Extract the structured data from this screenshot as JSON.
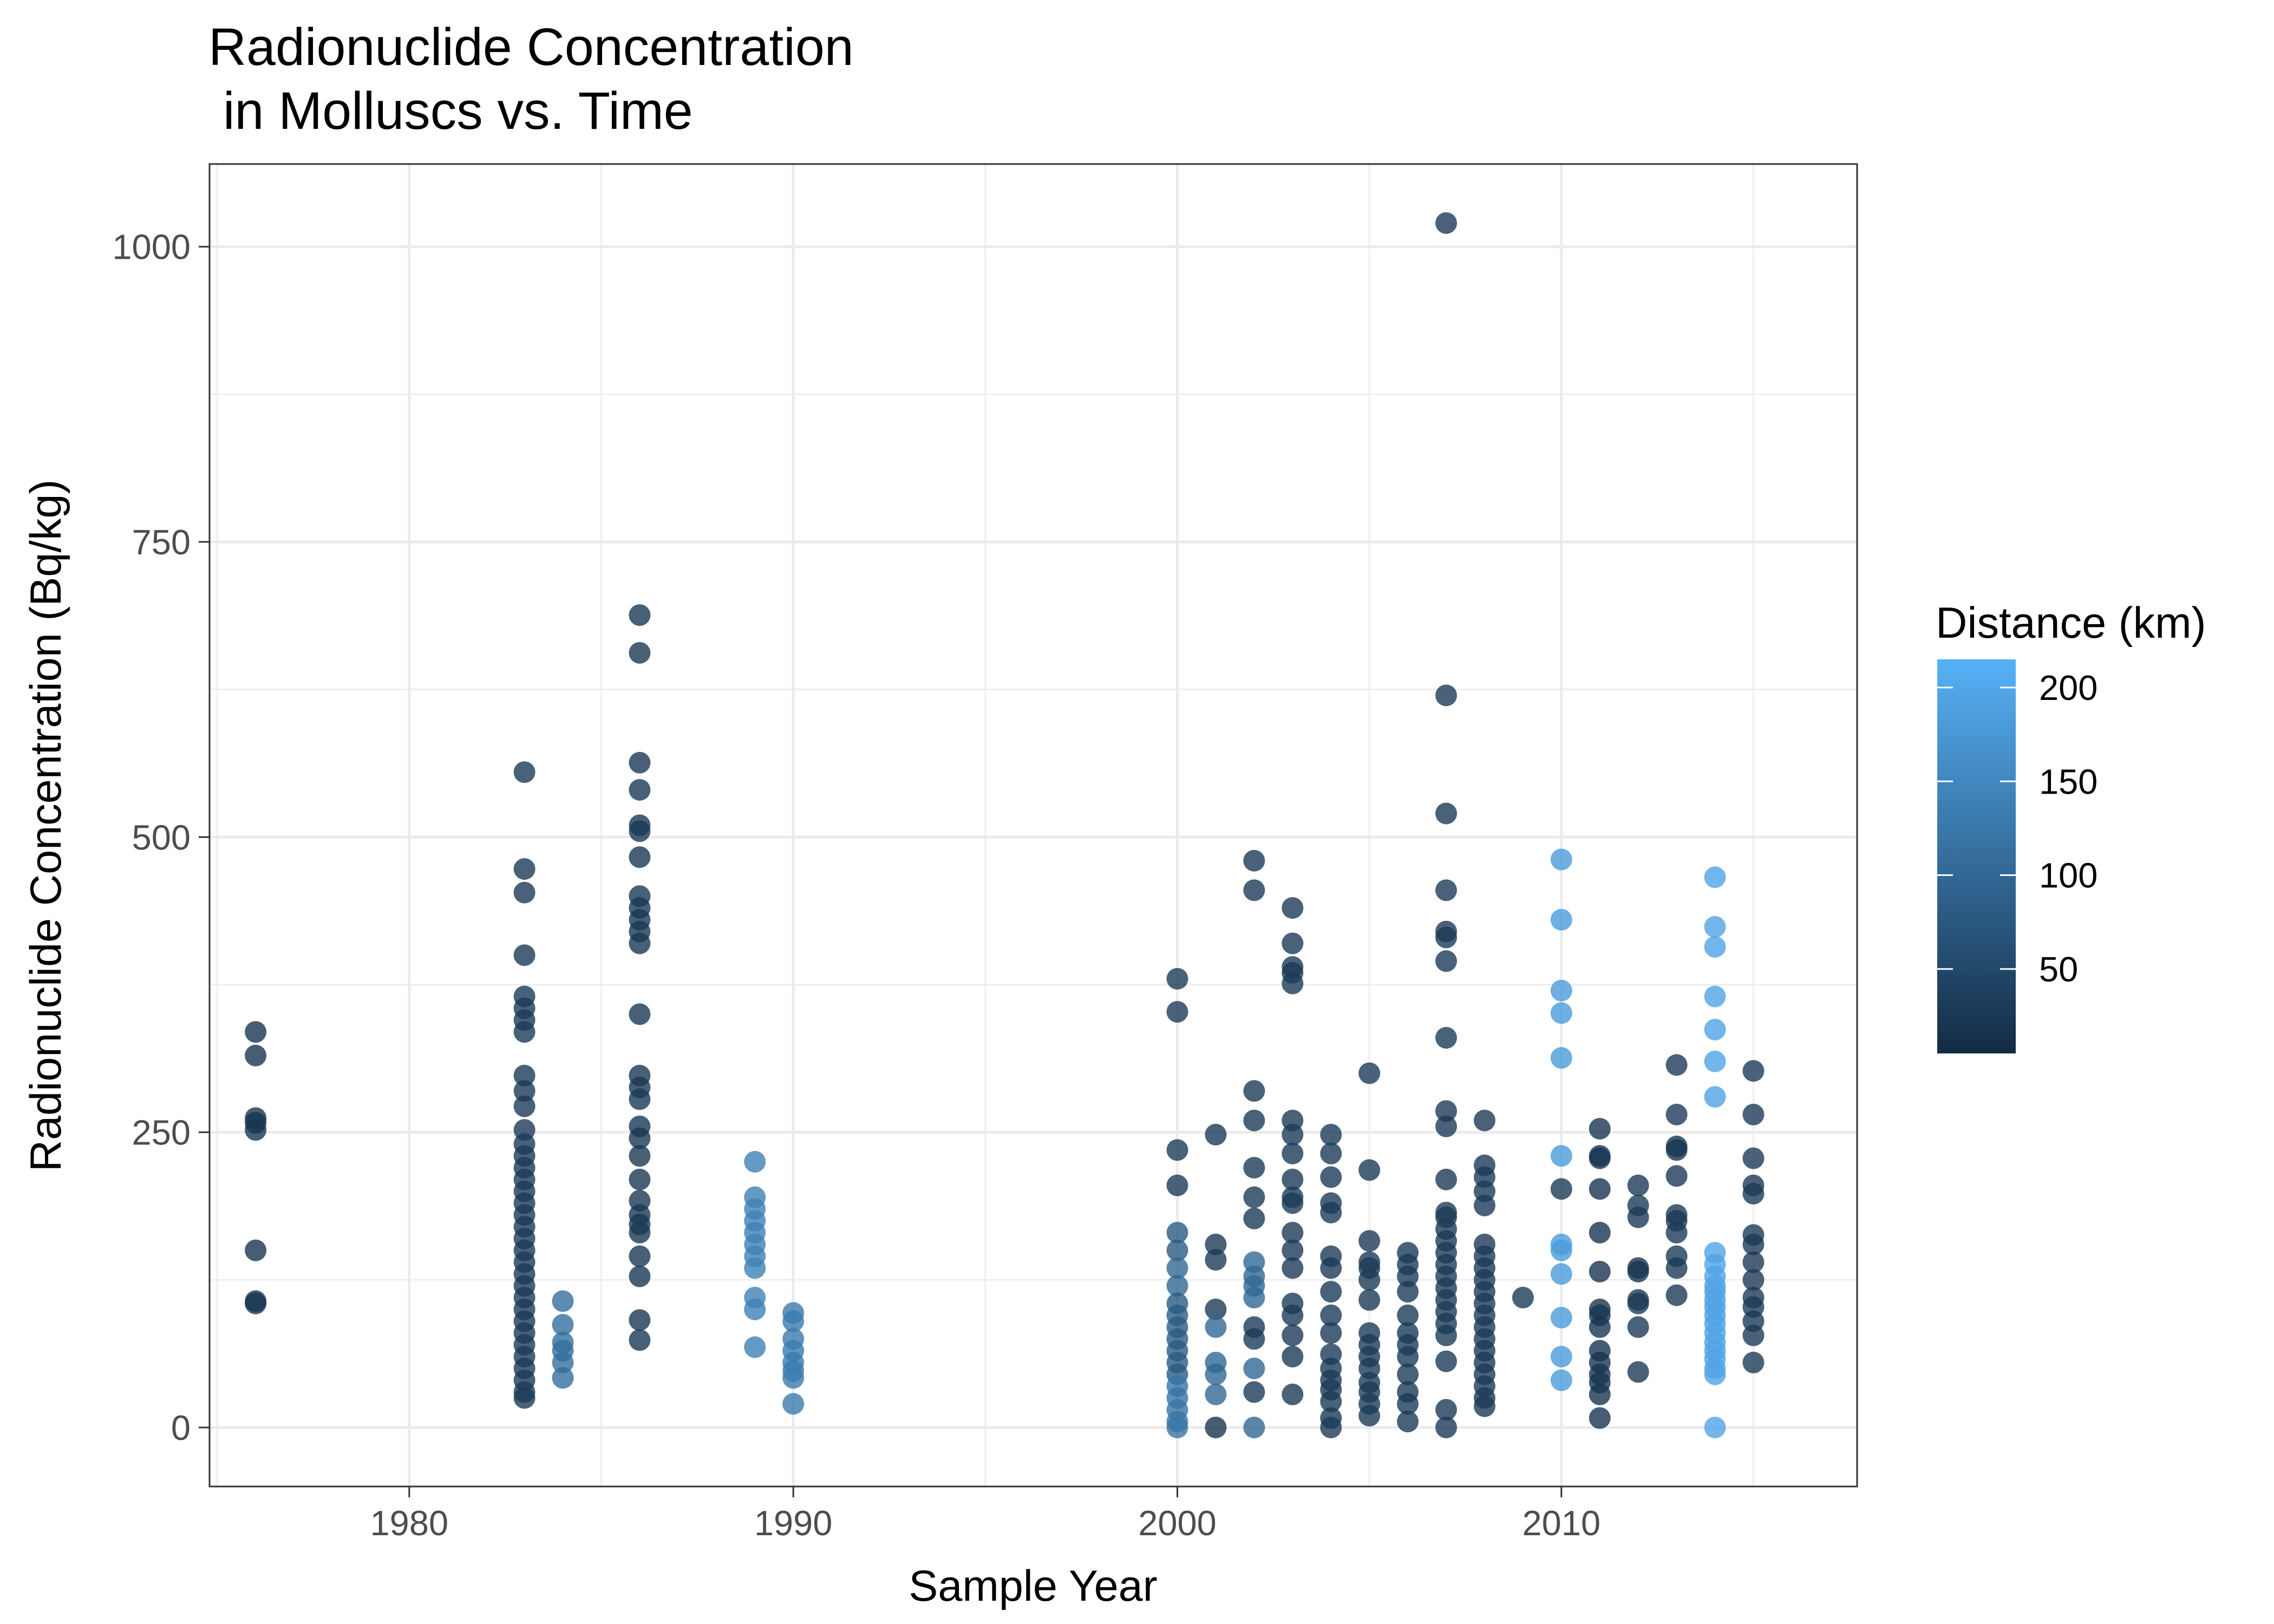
{
  "chart_data": {
    "type": "scatter",
    "title_lines": [
      "Radionuclide Concentration",
      " in Molluscs vs. Time"
    ],
    "xlabel": "Sample Year",
    "ylabel": "Radionuclide Concentration (Bq/kg)",
    "xlim": [
      1974.8,
      2017.7
    ],
    "ylim": [
      -50,
      1070
    ],
    "x_ticks": [
      1980,
      1990,
      2000,
      2010
    ],
    "y_ticks": [
      0,
      250,
      500,
      750,
      1000
    ],
    "grid": true,
    "legend": {
      "title": "Distance (km)",
      "position": "right",
      "scale": "continuous",
      "range": [
        5,
        215
      ],
      "ticks": [
        50,
        100,
        150,
        200
      ],
      "color_low": "#132b43",
      "color_high": "#56b1f7"
    },
    "points": [
      [
        1976,
        335,
        20
      ],
      [
        1976,
        315,
        20
      ],
      [
        1976,
        262,
        20
      ],
      [
        1976,
        258,
        20
      ],
      [
        1976,
        252,
        20
      ],
      [
        1976,
        150,
        20
      ],
      [
        1976,
        107,
        20
      ],
      [
        1976,
        105,
        20
      ],
      [
        1983,
        555,
        30
      ],
      [
        1983,
        473,
        30
      ],
      [
        1983,
        453,
        30
      ],
      [
        1983,
        400,
        30
      ],
      [
        1983,
        365,
        30
      ],
      [
        1983,
        355,
        30
      ],
      [
        1983,
        345,
        30
      ],
      [
        1983,
        335,
        30
      ],
      [
        1983,
        298,
        30
      ],
      [
        1983,
        285,
        30
      ],
      [
        1983,
        272,
        30
      ],
      [
        1983,
        252,
        30
      ],
      [
        1983,
        240,
        30
      ],
      [
        1983,
        230,
        30
      ],
      [
        1983,
        220,
        30
      ],
      [
        1983,
        210,
        30
      ],
      [
        1983,
        200,
        30
      ],
      [
        1983,
        190,
        30
      ],
      [
        1983,
        180,
        30
      ],
      [
        1983,
        170,
        30
      ],
      [
        1983,
        160,
        30
      ],
      [
        1983,
        150,
        30
      ],
      [
        1983,
        140,
        30
      ],
      [
        1983,
        130,
        30
      ],
      [
        1983,
        120,
        30
      ],
      [
        1983,
        110,
        30
      ],
      [
        1983,
        100,
        30
      ],
      [
        1983,
        90,
        30
      ],
      [
        1983,
        80,
        30
      ],
      [
        1983,
        70,
        30
      ],
      [
        1983,
        60,
        30
      ],
      [
        1983,
        50,
        30
      ],
      [
        1983,
        40,
        30
      ],
      [
        1983,
        30,
        30
      ],
      [
        1983,
        25,
        30
      ],
      [
        1984,
        107,
        110
      ],
      [
        1984,
        87,
        110
      ],
      [
        1984,
        72,
        110
      ],
      [
        1984,
        65,
        110
      ],
      [
        1984,
        55,
        110
      ],
      [
        1984,
        42,
        110
      ],
      [
        1986,
        688,
        25
      ],
      [
        1986,
        656,
        25
      ],
      [
        1986,
        563,
        25
      ],
      [
        1986,
        540,
        25
      ],
      [
        1986,
        510,
        25
      ],
      [
        1986,
        505,
        25
      ],
      [
        1986,
        483,
        25
      ],
      [
        1986,
        450,
        25
      ],
      [
        1986,
        440,
        25
      ],
      [
        1986,
        430,
        25
      ],
      [
        1986,
        420,
        25
      ],
      [
        1986,
        410,
        25
      ],
      [
        1986,
        350,
        25
      ],
      [
        1986,
        298,
        25
      ],
      [
        1986,
        288,
        25
      ],
      [
        1986,
        278,
        25
      ],
      [
        1986,
        255,
        25
      ],
      [
        1986,
        245,
        25
      ],
      [
        1986,
        230,
        25
      ],
      [
        1986,
        210,
        25
      ],
      [
        1986,
        192,
        25
      ],
      [
        1986,
        180,
        25
      ],
      [
        1986,
        172,
        25
      ],
      [
        1986,
        165,
        25
      ],
      [
        1986,
        145,
        25
      ],
      [
        1986,
        128,
        25
      ],
      [
        1986,
        91,
        25
      ],
      [
        1986,
        74,
        25
      ],
      [
        1989,
        225,
        140
      ],
      [
        1989,
        195,
        140
      ],
      [
        1989,
        185,
        140
      ],
      [
        1989,
        175,
        140
      ],
      [
        1989,
        165,
        140
      ],
      [
        1989,
        155,
        140
      ],
      [
        1989,
        145,
        140
      ],
      [
        1989,
        135,
        140
      ],
      [
        1989,
        110,
        140
      ],
      [
        1989,
        100,
        140
      ],
      [
        1989,
        68,
        140
      ],
      [
        1990,
        97,
        130
      ],
      [
        1990,
        90,
        130
      ],
      [
        1990,
        75,
        130
      ],
      [
        1990,
        65,
        130
      ],
      [
        1990,
        55,
        130
      ],
      [
        1990,
        48,
        130
      ],
      [
        1990,
        42,
        130
      ],
      [
        1990,
        20,
        130
      ],
      [
        2000,
        380,
        30
      ],
      [
        2000,
        352,
        30
      ],
      [
        2000,
        235,
        30
      ],
      [
        2000,
        205,
        30
      ],
      [
        2000,
        165,
        80
      ],
      [
        2000,
        150,
        80
      ],
      [
        2000,
        135,
        100
      ],
      [
        2000,
        120,
        100
      ],
      [
        2000,
        105,
        80
      ],
      [
        2000,
        95,
        80
      ],
      [
        2000,
        85,
        80
      ],
      [
        2000,
        75,
        80
      ],
      [
        2000,
        65,
        80
      ],
      [
        2000,
        55,
        80
      ],
      [
        2000,
        45,
        80
      ],
      [
        2000,
        35,
        120
      ],
      [
        2000,
        25,
        120
      ],
      [
        2000,
        15,
        120
      ],
      [
        2000,
        5,
        120
      ],
      [
        2000,
        0,
        120
      ],
      [
        2001,
        248,
        30
      ],
      [
        2001,
        155,
        30
      ],
      [
        2001,
        142,
        30
      ],
      [
        2001,
        100,
        30
      ],
      [
        2001,
        85,
        100
      ],
      [
        2001,
        55,
        100
      ],
      [
        2001,
        45,
        100
      ],
      [
        2001,
        28,
        100
      ],
      [
        2001,
        0,
        20
      ],
      [
        2002,
        480,
        30
      ],
      [
        2002,
        455,
        30
      ],
      [
        2002,
        285,
        30
      ],
      [
        2002,
        260,
        30
      ],
      [
        2002,
        220,
        30
      ],
      [
        2002,
        195,
        30
      ],
      [
        2002,
        177,
        30
      ],
      [
        2002,
        140,
        100
      ],
      [
        2002,
        128,
        100
      ],
      [
        2002,
        120,
        100
      ],
      [
        2002,
        110,
        100
      ],
      [
        2002,
        85,
        30
      ],
      [
        2002,
        75,
        30
      ],
      [
        2002,
        50,
        100
      ],
      [
        2002,
        30,
        30
      ],
      [
        2002,
        0,
        100
      ],
      [
        2003,
        440,
        30
      ],
      [
        2003,
        410,
        30
      ],
      [
        2003,
        390,
        30
      ],
      [
        2003,
        385,
        30
      ],
      [
        2003,
        376,
        30
      ],
      [
        2003,
        260,
        30
      ],
      [
        2003,
        248,
        30
      ],
      [
        2003,
        232,
        30
      ],
      [
        2003,
        210,
        30
      ],
      [
        2003,
        195,
        30
      ],
      [
        2003,
        190,
        30
      ],
      [
        2003,
        165,
        30
      ],
      [
        2003,
        150,
        30
      ],
      [
        2003,
        135,
        30
      ],
      [
        2003,
        105,
        30
      ],
      [
        2003,
        95,
        30
      ],
      [
        2003,
        78,
        30
      ],
      [
        2003,
        60,
        30
      ],
      [
        2003,
        28,
        30
      ],
      [
        2004,
        248,
        30
      ],
      [
        2004,
        232,
        30
      ],
      [
        2004,
        212,
        30
      ],
      [
        2004,
        190,
        30
      ],
      [
        2004,
        182,
        30
      ],
      [
        2004,
        145,
        30
      ],
      [
        2004,
        135,
        30
      ],
      [
        2004,
        115,
        30
      ],
      [
        2004,
        95,
        30
      ],
      [
        2004,
        80,
        30
      ],
      [
        2004,
        62,
        30
      ],
      [
        2004,
        50,
        30
      ],
      [
        2004,
        40,
        30
      ],
      [
        2004,
        32,
        30
      ],
      [
        2004,
        22,
        30
      ],
      [
        2004,
        8,
        30
      ],
      [
        2004,
        0,
        30
      ],
      [
        2005,
        300,
        30
      ],
      [
        2005,
        218,
        30
      ],
      [
        2005,
        158,
        30
      ],
      [
        2005,
        140,
        30
      ],
      [
        2005,
        135,
        30
      ],
      [
        2005,
        125,
        30
      ],
      [
        2005,
        108,
        30
      ],
      [
        2005,
        80,
        30
      ],
      [
        2005,
        70,
        30
      ],
      [
        2005,
        60,
        30
      ],
      [
        2005,
        50,
        30
      ],
      [
        2005,
        38,
        30
      ],
      [
        2005,
        30,
        30
      ],
      [
        2005,
        20,
        30
      ],
      [
        2005,
        10,
        30
      ],
      [
        2006,
        148,
        30
      ],
      [
        2006,
        138,
        30
      ],
      [
        2006,
        128,
        30
      ],
      [
        2006,
        115,
        30
      ],
      [
        2006,
        95,
        30
      ],
      [
        2006,
        80,
        30
      ],
      [
        2006,
        70,
        30
      ],
      [
        2006,
        60,
        30
      ],
      [
        2006,
        45,
        30
      ],
      [
        2006,
        30,
        30
      ],
      [
        2006,
        20,
        30
      ],
      [
        2006,
        5,
        30
      ],
      [
        2007,
        1020,
        30
      ],
      [
        2007,
        620,
        30
      ],
      [
        2007,
        520,
        30
      ],
      [
        2007,
        455,
        30
      ],
      [
        2007,
        420,
        30
      ],
      [
        2007,
        415,
        30
      ],
      [
        2007,
        395,
        30
      ],
      [
        2007,
        330,
        30
      ],
      [
        2007,
        268,
        30
      ],
      [
        2007,
        255,
        30
      ],
      [
        2007,
        210,
        30
      ],
      [
        2007,
        182,
        30
      ],
      [
        2007,
        178,
        30
      ],
      [
        2007,
        168,
        30
      ],
      [
        2007,
        158,
        30
      ],
      [
        2007,
        148,
        30
      ],
      [
        2007,
        138,
        30
      ],
      [
        2007,
        128,
        30
      ],
      [
        2007,
        118,
        30
      ],
      [
        2007,
        108,
        30
      ],
      [
        2007,
        98,
        30
      ],
      [
        2007,
        88,
        30
      ],
      [
        2007,
        78,
        30
      ],
      [
        2007,
        56,
        30
      ],
      [
        2007,
        15,
        30
      ],
      [
        2007,
        0,
        30
      ],
      [
        2008,
        260,
        30
      ],
      [
        2008,
        222,
        30
      ],
      [
        2008,
        212,
        30
      ],
      [
        2008,
        200,
        30
      ],
      [
        2008,
        188,
        30
      ],
      [
        2008,
        155,
        30
      ],
      [
        2008,
        145,
        30
      ],
      [
        2008,
        135,
        30
      ],
      [
        2008,
        125,
        30
      ],
      [
        2008,
        115,
        30
      ],
      [
        2008,
        105,
        30
      ],
      [
        2008,
        95,
        30
      ],
      [
        2008,
        85,
        30
      ],
      [
        2008,
        75,
        30
      ],
      [
        2008,
        65,
        30
      ],
      [
        2008,
        55,
        30
      ],
      [
        2008,
        45,
        30
      ],
      [
        2008,
        35,
        30
      ],
      [
        2008,
        25,
        30
      ],
      [
        2008,
        18,
        30
      ],
      [
        2009,
        110,
        30
      ],
      [
        2010,
        481,
        180
      ],
      [
        2010,
        430,
        180
      ],
      [
        2010,
        370,
        180
      ],
      [
        2010,
        351,
        180
      ],
      [
        2010,
        313,
        180
      ],
      [
        2010,
        230,
        180
      ],
      [
        2010,
        202,
        30
      ],
      [
        2010,
        155,
        180
      ],
      [
        2010,
        150,
        180
      ],
      [
        2010,
        130,
        180
      ],
      [
        2010,
        93,
        180
      ],
      [
        2010,
        60,
        180
      ],
      [
        2010,
        40,
        180
      ],
      [
        2011,
        253,
        20
      ],
      [
        2011,
        230,
        20
      ],
      [
        2011,
        228,
        20
      ],
      [
        2011,
        202,
        20
      ],
      [
        2011,
        165,
        20
      ],
      [
        2011,
        132,
        20
      ],
      [
        2011,
        100,
        20
      ],
      [
        2011,
        95,
        20
      ],
      [
        2011,
        85,
        20
      ],
      [
        2011,
        65,
        20
      ],
      [
        2011,
        55,
        20
      ],
      [
        2011,
        45,
        20
      ],
      [
        2011,
        38,
        20
      ],
      [
        2011,
        28,
        20
      ],
      [
        2011,
        8,
        20
      ],
      [
        2012,
        205,
        30
      ],
      [
        2012,
        188,
        30
      ],
      [
        2012,
        178,
        30
      ],
      [
        2012,
        135,
        20
      ],
      [
        2012,
        132,
        20
      ],
      [
        2012,
        108,
        30
      ],
      [
        2012,
        105,
        30
      ],
      [
        2012,
        85,
        30
      ],
      [
        2012,
        47,
        30
      ],
      [
        2013,
        307,
        30
      ],
      [
        2013,
        265,
        30
      ],
      [
        2013,
        238,
        20
      ],
      [
        2013,
        235,
        20
      ],
      [
        2013,
        213,
        30
      ],
      [
        2013,
        180,
        30
      ],
      [
        2013,
        175,
        30
      ],
      [
        2013,
        165,
        30
      ],
      [
        2013,
        145,
        30
      ],
      [
        2013,
        135,
        30
      ],
      [
        2013,
        112,
        30
      ],
      [
        2014,
        466,
        195
      ],
      [
        2014,
        424,
        195
      ],
      [
        2014,
        407,
        195
      ],
      [
        2014,
        365,
        195
      ],
      [
        2014,
        337,
        195
      ],
      [
        2014,
        310,
        195
      ],
      [
        2014,
        280,
        195
      ],
      [
        2014,
        148,
        195
      ],
      [
        2014,
        138,
        195
      ],
      [
        2014,
        128,
        195
      ],
      [
        2014,
        120,
        195
      ],
      [
        2014,
        115,
        195
      ],
      [
        2014,
        108,
        195
      ],
      [
        2014,
        102,
        195
      ],
      [
        2014,
        95,
        195
      ],
      [
        2014,
        88,
        195
      ],
      [
        2014,
        80,
        195
      ],
      [
        2014,
        72,
        195
      ],
      [
        2014,
        65,
        195
      ],
      [
        2014,
        58,
        195
      ],
      [
        2014,
        50,
        195
      ],
      [
        2014,
        45,
        195
      ],
      [
        2014,
        0,
        195
      ],
      [
        2015,
        302,
        30
      ],
      [
        2015,
        265,
        30
      ],
      [
        2015,
        228,
        30
      ],
      [
        2015,
        205,
        30
      ],
      [
        2015,
        198,
        30
      ],
      [
        2015,
        163,
        30
      ],
      [
        2015,
        155,
        30
      ],
      [
        2015,
        140,
        30
      ],
      [
        2015,
        125,
        30
      ],
      [
        2015,
        110,
        30
      ],
      [
        2015,
        102,
        30
      ],
      [
        2015,
        90,
        30
      ],
      [
        2015,
        78,
        30
      ],
      [
        2015,
        55,
        30
      ]
    ]
  }
}
